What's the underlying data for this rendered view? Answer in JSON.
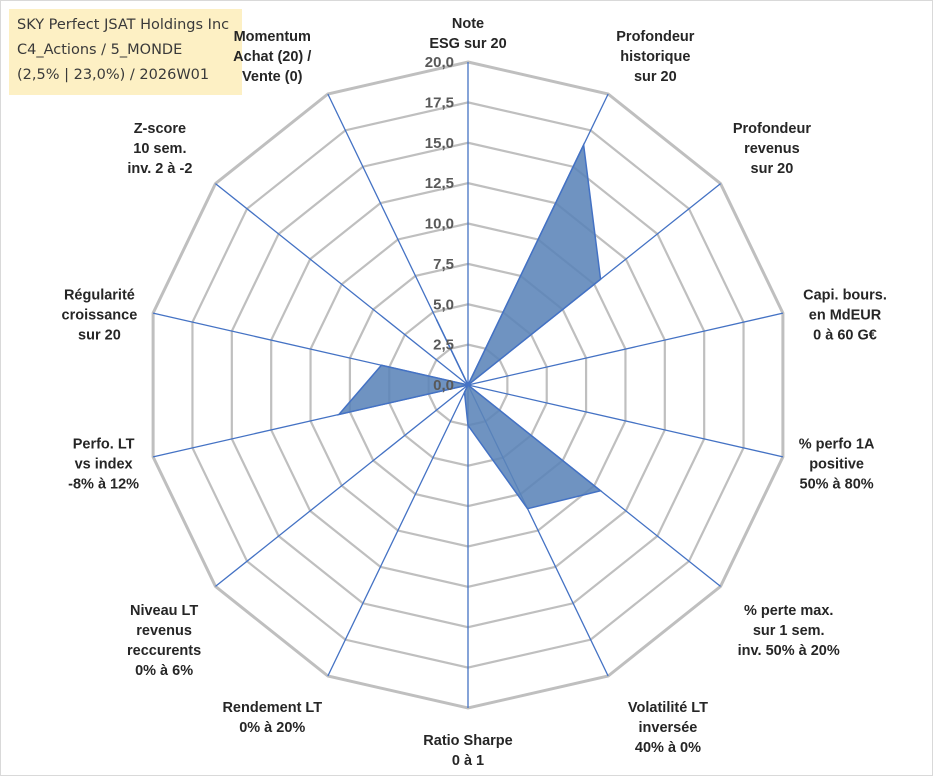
{
  "title_box": {
    "line1": "SKY Perfect JSAT Holdings Inc",
    "line2": "C4_Actions / 5_MONDE",
    "line3": "(2,5% | 23,0%) / 2026W01"
  },
  "chart_data": {
    "type": "radar",
    "axes": [
      [
        "Note",
        "ESG sur 20"
      ],
      [
        "Profondeur",
        "historique",
        "sur 20"
      ],
      [
        "Profondeur",
        "revenus",
        "sur 20"
      ],
      [
        "Capi. bours.",
        "en MdEUR",
        "0 à 60 G€"
      ],
      [
        "% perfo 1A",
        "positive",
        "50% à 80%"
      ],
      [
        "% perte max.",
        "sur 1 sem.",
        "inv. 50% à 20%"
      ],
      [
        "Volatilité LT",
        "inversée",
        "40% à 0%"
      ],
      [
        "Ratio Sharpe",
        "0 à 1"
      ],
      [
        "Rendement LT",
        "0% à 20%"
      ],
      [
        "Niveau LT",
        "revenus",
        "reccurents",
        "0% à 6%"
      ],
      [
        "Perfo. LT",
        "vs index",
        "-8% à 12%"
      ],
      [
        "Régularité",
        "croissance",
        "sur 20"
      ],
      [
        "Z-score",
        "10 sem.",
        "inv. 2 à -2"
      ],
      [
        "Momentum",
        "Achat (20) /",
        "Vente (0)"
      ]
    ],
    "values": [
      0,
      16.5,
      10.5,
      0,
      0,
      10.5,
      8.5,
      2.5,
      0.5,
      0,
      8.2,
      5.5,
      0,
      4.5
    ],
    "rmax": 20,
    "ticks": [
      "0,0",
      "2,5",
      "5,0",
      "7,5",
      "10,0",
      "12,5",
      "15,0",
      "17,5",
      "20,0"
    ],
    "colors": {
      "fill": "#5b84b8",
      "stroke": "#4472c4",
      "grid": "#bfbfbf",
      "spoke": "#4472c4"
    }
  }
}
